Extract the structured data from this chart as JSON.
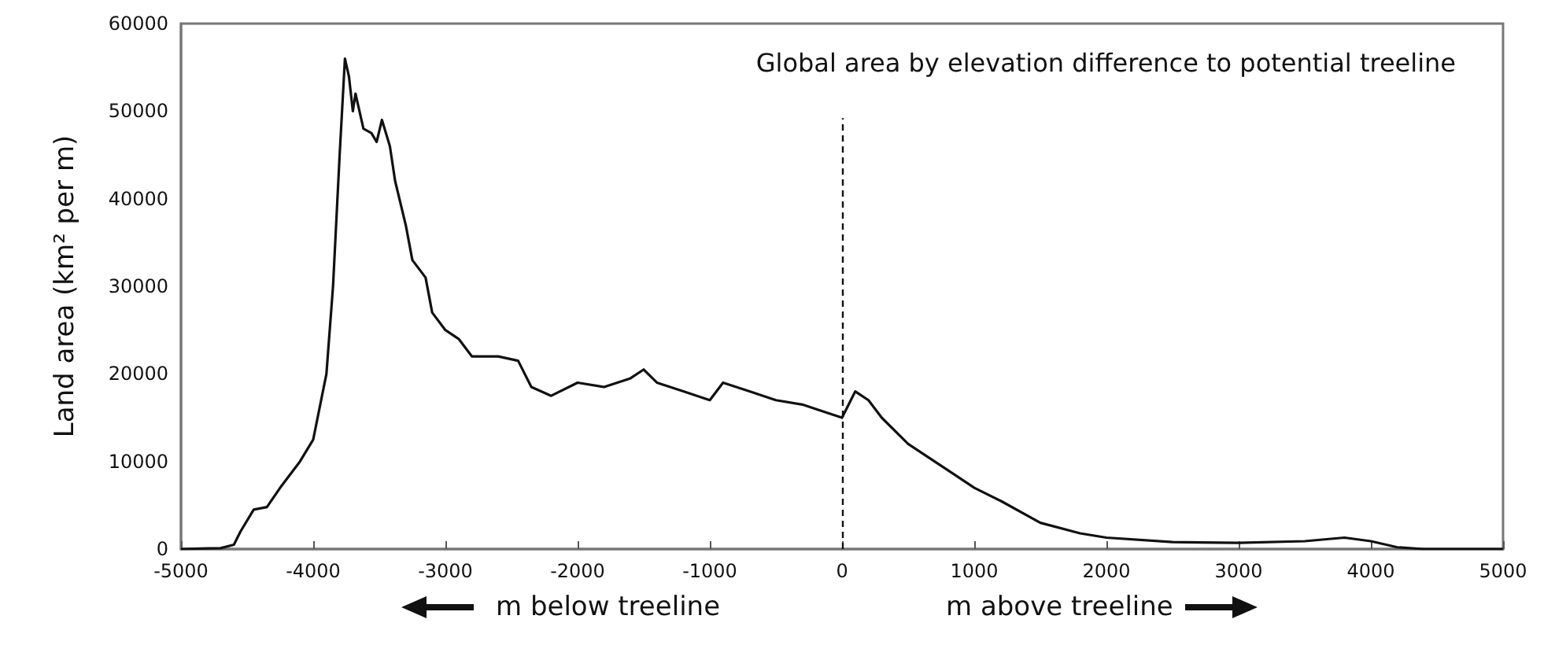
{
  "chart_data": {
    "type": "line",
    "title": "Global area by elevation difference to potential treeline",
    "ylabel": "Land area (km² per m)",
    "annotations": [
      "m below treeline",
      "m above treeline"
    ],
    "x": [
      -5000,
      -4700,
      -4600,
      -4550,
      -4450,
      -4350,
      -4250,
      -4100,
      -4000,
      -3900,
      -3850,
      -3800,
      -3760,
      -3730,
      -3700,
      -3680,
      -3620,
      -3560,
      -3520,
      -3480,
      -3420,
      -3380,
      -3300,
      -3250,
      -3150,
      -3100,
      -3000,
      -2900,
      -2800,
      -2600,
      -2450,
      -2350,
      -2200,
      -2000,
      -1800,
      -1600,
      -1500,
      -1400,
      -1200,
      -1000,
      -900,
      -700,
      -500,
      -300,
      -100,
      0,
      100,
      200,
      300,
      500,
      700,
      900,
      1000,
      1200,
      1500,
      1800,
      2000,
      2500,
      3000,
      3500,
      3800,
      4000,
      4200,
      4400,
      5000
    ],
    "series": [
      {
        "color": "#111111",
        "values": [
          0,
          100,
          500,
          2000,
          4500,
          4800,
          7000,
          10000,
          12500,
          20000,
          30000,
          45000,
          56000,
          54000,
          50000,
          52000,
          48000,
          47500,
          46500,
          49000,
          46000,
          42000,
          37000,
          33000,
          31000,
          27000,
          25000,
          24000,
          22000,
          22000,
          21500,
          18500,
          17500,
          19000,
          18500,
          19500,
          20500,
          19000,
          18000,
          17000,
          19000,
          18000,
          17000,
          16500,
          15500,
          15000,
          18000,
          17000,
          15000,
          12000,
          10000,
          8000,
          7000,
          5500,
          3000,
          1800,
          1300,
          800,
          700,
          900,
          1300,
          900,
          200,
          0,
          0
        ]
      }
    ],
    "xlim": [
      -5000,
      5000
    ],
    "xticks": [
      -5000,
      -4000,
      -3000,
      -2000,
      -1000,
      0,
      1000,
      2000,
      3000,
      4000,
      5000
    ],
    "ylim": [
      0,
      60000
    ],
    "yticks": [
      0,
      10000,
      20000,
      30000,
      40000,
      50000,
      60000
    ],
    "ref_lines": [
      {
        "axis": "x",
        "value": 0,
        "line_style": "dashed",
        "color": "#111111"
      }
    ],
    "grid": false,
    "marker": "none",
    "line_style": "solid"
  }
}
